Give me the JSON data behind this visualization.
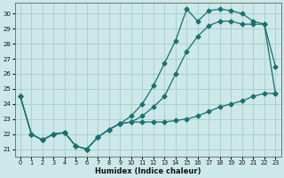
{
  "xlabel": "Humidex (Indice chaleur)",
  "bg_color": "#cce8e8",
  "grid_color": "#aacccc",
  "line_color": "#1a7070",
  "xlim": [
    -0.5,
    23.5
  ],
  "ylim": [
    20.5,
    30.7
  ],
  "xticks": [
    0,
    1,
    2,
    3,
    4,
    5,
    6,
    7,
    8,
    9,
    10,
    11,
    12,
    13,
    14,
    15,
    16,
    17,
    18,
    19,
    20,
    21,
    22,
    23
  ],
  "yticks": [
    21,
    22,
    23,
    24,
    25,
    26,
    27,
    28,
    29,
    30
  ],
  "line1": {
    "x": [
      0,
      1,
      2,
      3,
      4,
      5,
      6,
      7,
      8,
      9,
      10,
      11,
      12,
      13,
      14,
      15,
      16,
      17,
      18,
      19,
      20,
      21,
      22,
      23
    ],
    "y": [
      24.5,
      22.0,
      21.6,
      22.0,
      22.1,
      21.2,
      21.0,
      21.8,
      22.3,
      22.7,
      23.2,
      24.0,
      25.2,
      26.7,
      28.2,
      30.3,
      29.5,
      30.2,
      30.3,
      30.2,
      30.0,
      29.5,
      29.3,
      26.5
    ]
  },
  "line2": {
    "x": [
      0,
      1,
      2,
      3,
      4,
      5,
      6,
      7,
      8,
      9,
      10,
      11,
      12,
      13,
      14,
      15,
      16,
      17,
      18,
      19,
      20,
      21,
      22,
      23
    ],
    "y": [
      24.5,
      22.0,
      21.6,
      22.0,
      22.1,
      21.2,
      21.0,
      21.8,
      22.3,
      22.7,
      22.8,
      23.2,
      23.8,
      24.5,
      26.0,
      27.5,
      28.5,
      29.2,
      29.5,
      29.5,
      29.3,
      29.3,
      29.3,
      24.7
    ]
  },
  "line3": {
    "x": [
      0,
      1,
      2,
      3,
      4,
      5,
      6,
      7,
      8,
      9,
      10,
      11,
      12,
      13,
      14,
      15,
      16,
      17,
      18,
      19,
      20,
      21,
      22,
      23
    ],
    "y": [
      24.5,
      22.0,
      21.6,
      22.0,
      22.1,
      21.2,
      21.0,
      21.8,
      22.3,
      22.7,
      22.8,
      22.8,
      22.8,
      22.8,
      22.9,
      23.0,
      23.2,
      23.5,
      23.8,
      24.0,
      24.2,
      24.5,
      24.7,
      24.7
    ]
  }
}
